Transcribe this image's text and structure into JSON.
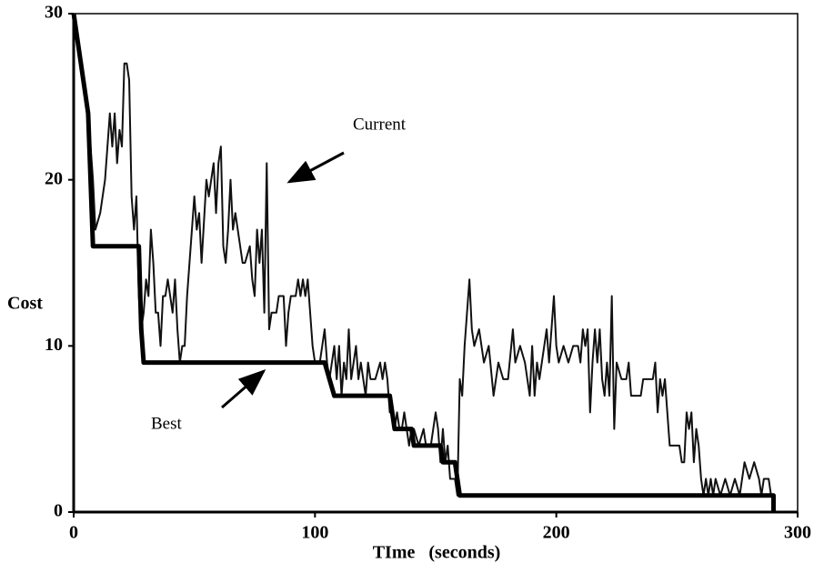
{
  "chart_data": {
    "type": "line",
    "xlabel": "TIme   (seconds)",
    "ylabel": "Cost",
    "xlim": [
      0,
      300
    ],
    "ylim": [
      0,
      30
    ],
    "xticks": [
      0,
      100,
      200,
      300
    ],
    "yticks": [
      0,
      10,
      20,
      30
    ],
    "annotations": [
      {
        "text": "Current"
      },
      {
        "text": "Best"
      }
    ],
    "series": [
      {
        "name": "Current",
        "color": "#111111",
        "x": [
          0,
          3,
          6,
          8,
          9,
          11,
          13,
          15,
          16,
          17,
          18,
          19,
          20,
          21,
          22,
          23,
          24,
          25,
          26,
          27,
          28,
          29,
          30,
          31,
          32,
          33,
          34,
          35,
          36,
          37,
          38,
          39,
          40,
          41,
          42,
          43,
          44,
          45,
          46,
          47,
          48,
          49,
          50,
          51,
          52,
          53,
          55,
          56,
          57,
          58,
          59,
          60,
          61,
          62,
          63,
          64,
          65,
          66,
          67,
          68,
          70,
          71,
          73,
          74,
          75,
          76,
          77,
          78,
          79,
          80,
          81,
          82,
          84,
          85,
          87,
          88,
          89,
          90,
          92,
          93,
          94,
          95,
          96,
          97,
          99,
          100,
          102,
          103,
          104,
          105,
          106,
          107,
          108,
          109,
          110,
          111,
          112,
          113,
          114,
          115,
          116,
          117,
          118,
          119,
          120,
          121,
          122,
          123,
          124,
          125,
          127,
          128,
          129,
          130,
          131,
          132,
          133,
          134,
          135,
          136,
          137,
          138,
          139,
          140,
          141,
          143,
          145,
          146,
          148,
          150,
          151,
          152,
          153,
          154,
          155,
          156,
          158,
          159,
          160,
          161,
          162,
          164,
          165,
          166,
          168,
          170,
          172,
          174,
          176,
          178,
          180,
          182,
          183,
          185,
          187,
          189,
          190,
          191,
          192,
          193,
          194,
          196,
          197,
          199,
          200,
          201,
          203,
          205,
          207,
          209,
          210,
          211,
          212,
          213,
          214,
          215,
          216,
          217,
          218,
          219,
          220,
          221,
          222,
          223,
          224,
          225,
          227,
          229,
          230,
          231,
          233,
          235,
          236,
          238,
          240,
          241,
          242,
          243,
          244,
          245,
          246,
          247,
          249,
          251,
          252,
          253,
          254,
          255,
          256,
          257,
          258,
          259,
          260,
          261,
          262,
          263,
          264,
          265,
          266,
          268,
          270,
          272,
          274,
          276,
          278,
          280,
          282,
          284,
          285,
          286,
          288,
          289
        ],
        "values": [
          30,
          27,
          24,
          20,
          17,
          18,
          20,
          24,
          22,
          24,
          21,
          23,
          22,
          27,
          27,
          26,
          19,
          17,
          19,
          13,
          11,
          12,
          14,
          13,
          17,
          15,
          12,
          12,
          10,
          13,
          13,
          14,
          13,
          12,
          14,
          11,
          9,
          10,
          10,
          13,
          15,
          17,
          19,
          17,
          18,
          15,
          20,
          19,
          20,
          21,
          18,
          21,
          22,
          16,
          15,
          17,
          20,
          17,
          18,
          17,
          15,
          15,
          16,
          14,
          13,
          17,
          15,
          17,
          12,
          21,
          11,
          12,
          12,
          13,
          13,
          10,
          12,
          13,
          13,
          14,
          13,
          14,
          13,
          14,
          10,
          9,
          9,
          10,
          11,
          9,
          8,
          9,
          10,
          8,
          10,
          7,
          9,
          8,
          11,
          8,
          9,
          10,
          8,
          9,
          8,
          7,
          9,
          8,
          8,
          8,
          9,
          8,
          9,
          8,
          6,
          6,
          5,
          6,
          5,
          5,
          6,
          5,
          4,
          5,
          5,
          4,
          5,
          4,
          4,
          6,
          5,
          3,
          5,
          3,
          4,
          2,
          2,
          1,
          8,
          7,
          10,
          14,
          11,
          10,
          11,
          9,
          10,
          7,
          9,
          8,
          8,
          11,
          9,
          10,
          9,
          7,
          10,
          7,
          9,
          8,
          9,
          11,
          9,
          13,
          10,
          9,
          10,
          9,
          10,
          10,
          9,
          11,
          10,
          11,
          6,
          9,
          11,
          9,
          11,
          8,
          7,
          9,
          7,
          13,
          5,
          9,
          8,
          8,
          9,
          7,
          7,
          7,
          8,
          8,
          8,
          9,
          6,
          8,
          7,
          8,
          6,
          4,
          4,
          4,
          3,
          3,
          6,
          5,
          6,
          3,
          5,
          4,
          2,
          1,
          2,
          1,
          2,
          1,
          2,
          1,
          2,
          1,
          2,
          1,
          3,
          2,
          3,
          2,
          1,
          2,
          2,
          1
        ]
      },
      {
        "name": "Best",
        "color": "#000000",
        "x": [
          0,
          3,
          6,
          8,
          27,
          28,
          29,
          104,
          106,
          108,
          131,
          133,
          140,
          141,
          152,
          153,
          158,
          159,
          160,
          290,
          290
        ],
        "values": [
          30,
          27,
          24,
          16,
          16,
          11,
          9,
          9,
          8,
          7,
          7,
          5,
          5,
          4,
          4,
          3,
          3,
          2,
          1,
          1,
          0
        ]
      }
    ]
  }
}
